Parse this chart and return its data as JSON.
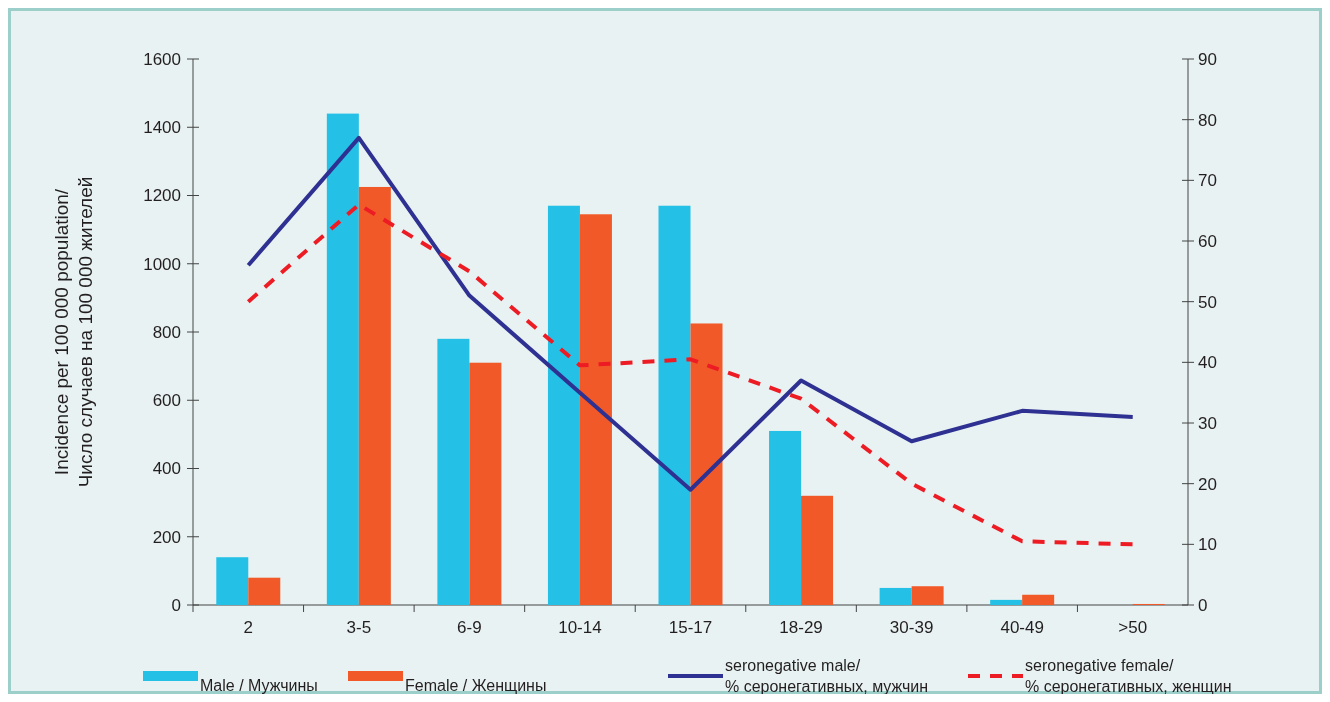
{
  "chart_data": {
    "type": "bar",
    "ylabel": "Incidence per 100 000 population/\nЧисло случаев на 100 000 жителей",
    "categories": [
      "2",
      "3-5",
      "6-9",
      "10-14",
      "15-17",
      "18-29",
      "30-39",
      "40-49",
      ">50"
    ],
    "series": [
      {
        "name": "Male / Мужчины",
        "color": "#25c0e6",
        "values": [
          140,
          1440,
          780,
          1170,
          1170,
          510,
          50,
          15,
          0
        ]
      },
      {
        "name": "Female / Женщины",
        "color": "#f15a28",
        "values": [
          80,
          1225,
          710,
          1145,
          825,
          320,
          55,
          30,
          3
        ]
      },
      {
        "name": "seronegative male/\n% серонегативных, мужчин",
        "type": "line",
        "axis": "y2",
        "color": "#2e3192",
        "line_style": "solid",
        "values": [
          56,
          77,
          51,
          35,
          19,
          37,
          27,
          32,
          31
        ]
      },
      {
        "name": "seronegative  female/\n% серонегативных, женщин",
        "type": "line",
        "axis": "y2",
        "color": "#ed1c24",
        "line_style": "dashed",
        "values": [
          50,
          66,
          55,
          39.5,
          40.5,
          34,
          20,
          10.5,
          10
        ]
      }
    ],
    "ylim": [
      0,
      1600
    ],
    "yticks": [
      0,
      200,
      400,
      600,
      800,
      1000,
      1200,
      1400,
      1600
    ],
    "y2lim": [
      0,
      90
    ],
    "y2ticks": [
      0,
      10,
      20,
      30,
      40,
      50,
      60,
      70,
      80,
      90
    ],
    "grid": false,
    "legend": "bottom"
  }
}
